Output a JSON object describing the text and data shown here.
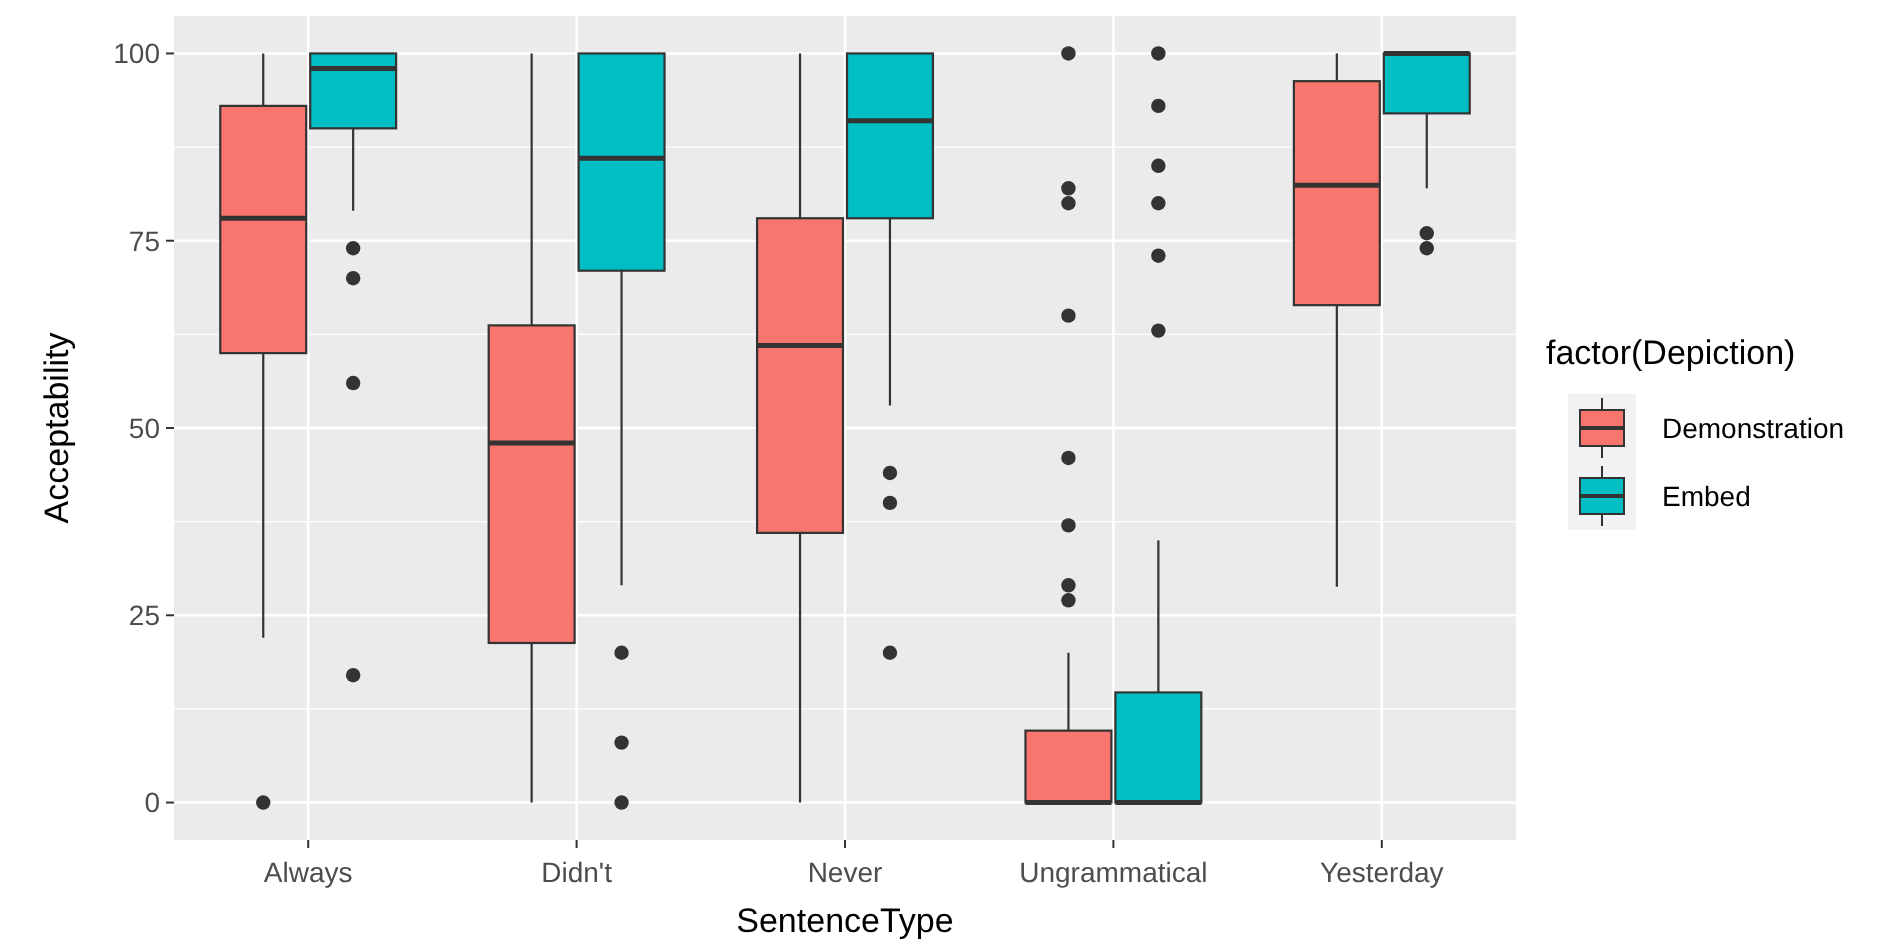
{
  "chart_data": {
    "type": "box",
    "xlabel": "SentenceType",
    "ylabel": "Acceptability",
    "legend_title": "factor(Depiction)",
    "legend": "right",
    "grid": true,
    "categories": [
      "Always",
      "Didn't",
      "Never",
      "Ungrammatical",
      "Yesterday"
    ],
    "ylim": [
      -5,
      105
    ],
    "yticks": [
      0,
      25,
      50,
      75,
      100
    ],
    "series": [
      {
        "name": "Demonstration",
        "color": "#f8766d",
        "boxes": [
          {
            "low": 22,
            "q1": 60,
            "median": 78,
            "q3": 93,
            "high": 100,
            "outliers": [
              0
            ]
          },
          {
            "low": 0,
            "q1": 21.3,
            "median": 48,
            "q3": 63.7,
            "high": 100
          },
          {
            "low": 0,
            "q1": 36,
            "median": 61,
            "q3": 78,
            "high": 100
          },
          {
            "low": 0,
            "q1": 0,
            "median": 0,
            "q3": 9.6,
            "high": 20,
            "outliers": [
              27,
              29,
              37,
              46,
              65,
              80,
              82,
              100
            ]
          },
          {
            "low": 28.8,
            "q1": 66.4,
            "median": 82.4,
            "q3": 96.3,
            "high": 100
          }
        ]
      },
      {
        "name": "Embed",
        "color": "#00bfc4",
        "boxes": [
          {
            "low": 79,
            "q1": 90,
            "median": 98,
            "q3": 100,
            "high": 100,
            "outliers": [
              74,
              70,
              56,
              17
            ]
          },
          {
            "low": 29,
            "q1": 71,
            "median": 86,
            "q3": 100,
            "high": 100,
            "outliers": [
              20,
              8,
              0
            ]
          },
          {
            "low": 53,
            "q1": 78,
            "median": 91,
            "q3": 100,
            "high": 100,
            "outliers": [
              44,
              40,
              20
            ]
          },
          {
            "low": 0,
            "q1": 0,
            "median": 0,
            "q3": 14.7,
            "high": 35,
            "outliers": [
              63,
              73,
              80,
              85,
              93,
              100
            ]
          },
          {
            "low": 82,
            "q1": 92,
            "median": 100,
            "q3": 100,
            "high": 100,
            "outliers": [
              76,
              74
            ]
          }
        ]
      }
    ]
  }
}
